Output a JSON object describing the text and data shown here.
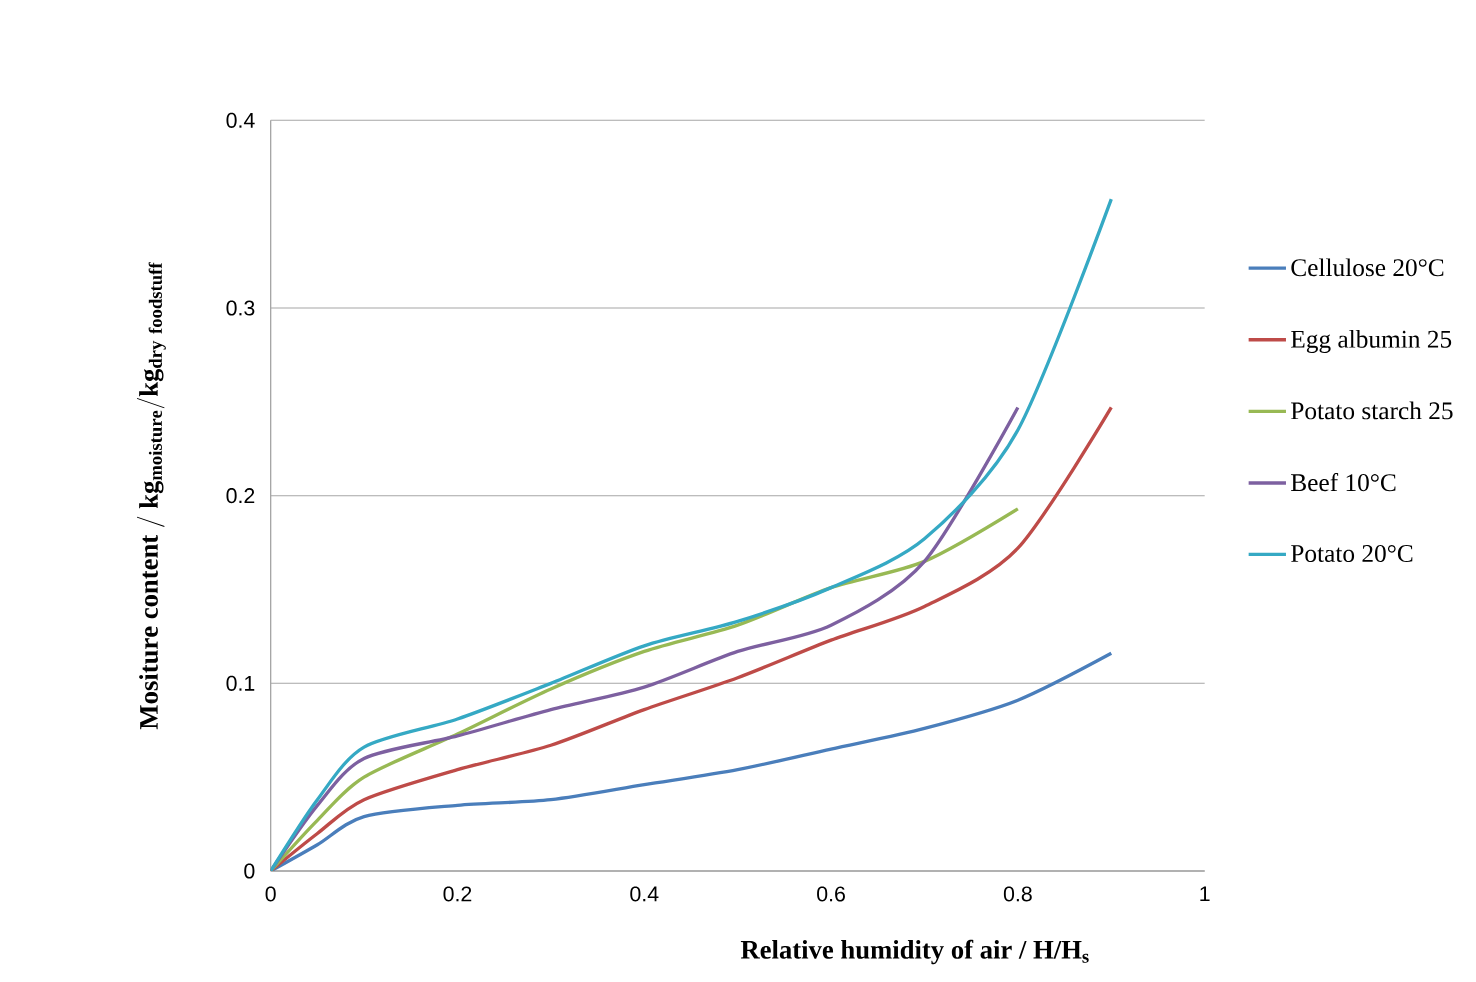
{
  "chart_data": {
    "type": "line",
    "xlabel": "Relative humidity of air / H/H$_{s}$",
    "ylabel": "\\mathbf{Mositure\\ content\\ /\\ kg_{moisture}/kg_{dry\\ foodstuff}}",
    "xlim": [
      0,
      1
    ],
    "ylim": [
      0,
      0.4
    ],
    "xticks": [
      0,
      0.2,
      0.4,
      0.6,
      0.8,
      1
    ],
    "yticks": [
      0,
      0.1,
      0.2,
      0.3,
      0.4
    ],
    "grid": "y",
    "legend": "right",
    "marker": "none",
    "line_style": "solid",
    "x": [
      0,
      0.05,
      0.1,
      0.2,
      0.3,
      0.4,
      0.5,
      0.6,
      0.7,
      0.8,
      0.9
    ],
    "series": [
      {
        "name": "Cellulose 20°C",
        "color": "#4a7ebb",
        "values": [
          0,
          0.014,
          0.029,
          0.035,
          0.038,
          0.046,
          0.054,
          0.065,
          0.076,
          0.091,
          0.116
        ]
      },
      {
        "name": "Egg albumin 25",
        "color": "#be4b48",
        "values": [
          0,
          0.02,
          0.038,
          0.054,
          0.067,
          0.086,
          0.103,
          0.123,
          0.141,
          0.172,
          0.247
        ]
      },
      {
        "name": "Potato starch 25",
        "color": "#98b954",
        "values": [
          0,
          0.027,
          0.05,
          0.073,
          0.097,
          0.117,
          0.131,
          0.151,
          0.165,
          0.193,
          null
        ]
      },
      {
        "name": "Beef 10°C",
        "color": "#7d60a0",
        "values": [
          0,
          0.035,
          0.06,
          0.072,
          0.086,
          0.098,
          0.117,
          0.131,
          0.165,
          0.247,
          null
        ]
      },
      {
        "name": "Potato 20°C",
        "color": "#35a9c4",
        "values": [
          0,
          0.038,
          0.066,
          0.081,
          0.1,
          0.12,
          0.133,
          0.151,
          0.177,
          0.235,
          0.358
        ]
      }
    ]
  }
}
